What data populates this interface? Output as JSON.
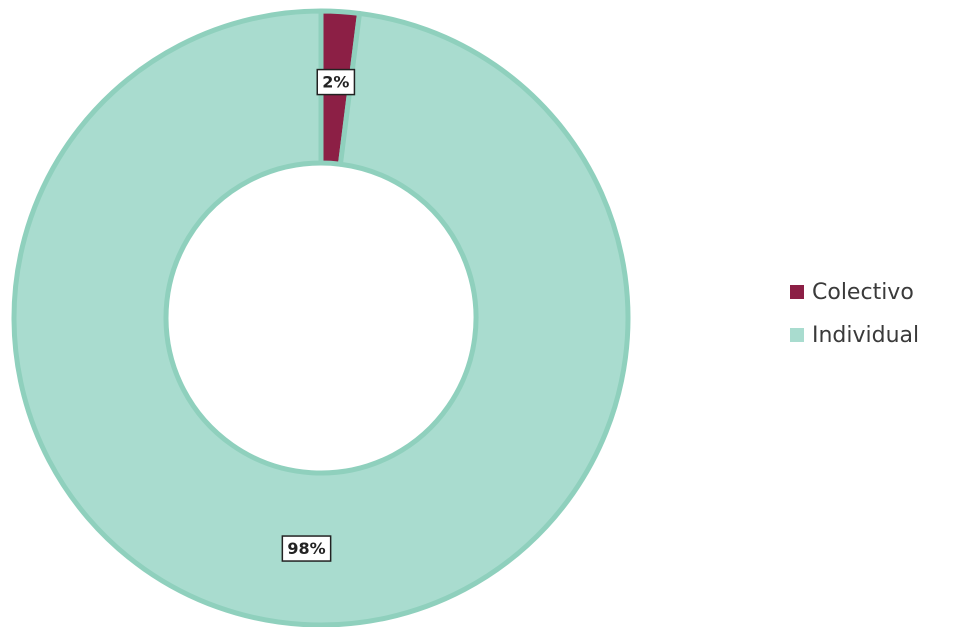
{
  "chart_data": {
    "type": "pie",
    "variant": "donut",
    "categories": [
      "Colectivo",
      "Individual"
    ],
    "values": [
      2,
      98
    ],
    "data_labels": [
      "2%",
      "98%"
    ],
    "colors": [
      "#8c1f45",
      "#a9dccf"
    ],
    "border_color": "#8fd0bd",
    "legend_position": "right",
    "title": ""
  }
}
